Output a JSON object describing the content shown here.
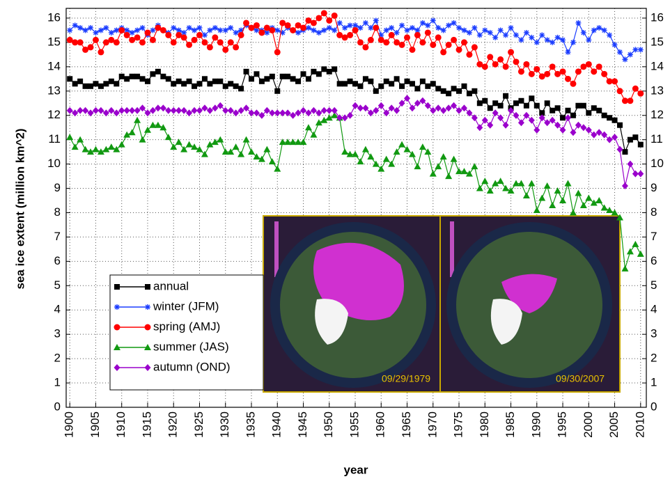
{
  "chart_data": {
    "type": "line",
    "x_label": "year",
    "y_label": "sea ice extent (million km^2)",
    "x": [
      1900,
      1901,
      1902,
      1903,
      1904,
      1905,
      1906,
      1907,
      1908,
      1909,
      1910,
      1911,
      1912,
      1913,
      1914,
      1915,
      1916,
      1917,
      1918,
      1919,
      1920,
      1921,
      1922,
      1923,
      1924,
      1925,
      1926,
      1927,
      1928,
      1929,
      1930,
      1931,
      1932,
      1933,
      1934,
      1935,
      1936,
      1937,
      1938,
      1939,
      1940,
      1941,
      1942,
      1943,
      1944,
      1945,
      1946,
      1947,
      1948,
      1949,
      1950,
      1951,
      1952,
      1953,
      1954,
      1955,
      1956,
      1957,
      1958,
      1959,
      1960,
      1961,
      1962,
      1963,
      1964,
      1965,
      1966,
      1967,
      1968,
      1969,
      1970,
      1971,
      1972,
      1973,
      1974,
      1975,
      1976,
      1977,
      1978,
      1979,
      1980,
      1981,
      1982,
      1983,
      1984,
      1985,
      1986,
      1987,
      1988,
      1989,
      1990,
      1991,
      1992,
      1993,
      1994,
      1995,
      1996,
      1997,
      1998,
      1999,
      2000,
      2001,
      2002,
      2003,
      2004,
      2005,
      2006,
      2007,
      2008,
      2009,
      2010
    ],
    "xlim": [
      1899.3,
      2011.1
    ],
    "xticks": [
      1900,
      1905,
      1910,
      1915,
      1920,
      1925,
      1930,
      1935,
      1940,
      1945,
      1950,
      1955,
      1960,
      1965,
      1970,
      1975,
      1980,
      1985,
      1990,
      1995,
      2000,
      2005,
      2010
    ],
    "ylim": [
      0,
      16.4
    ],
    "yticks": [
      0,
      1,
      2,
      3,
      4,
      5,
      6,
      7,
      8,
      9,
      10,
      11,
      12,
      13,
      14,
      15,
      16
    ],
    "grid": true,
    "legend": "lower left",
    "series": [
      {
        "name": "annual",
        "color": "#000000",
        "marker": "square",
        "values": [
          13.5,
          13.3,
          13.4,
          13.2,
          13.2,
          13.3,
          13.2,
          13.3,
          13.4,
          13.3,
          13.6,
          13.5,
          13.6,
          13.6,
          13.5,
          13.4,
          13.7,
          13.8,
          13.6,
          13.5,
          13.3,
          13.4,
          13.3,
          13.4,
          13.2,
          13.3,
          13.5,
          13.3,
          13.4,
          13.4,
          13.2,
          13.3,
          13.2,
          13.1,
          13.8,
          13.5,
          13.7,
          13.4,
          13.5,
          13.6,
          13.0,
          13.6,
          13.6,
          13.5,
          13.4,
          13.7,
          13.5,
          13.8,
          13.7,
          13.9,
          13.8,
          13.9,
          13.3,
          13.3,
          13.4,
          13.3,
          13.2,
          13.5,
          13.4,
          13.0,
          13.2,
          13.4,
          13.3,
          13.5,
          13.2,
          13.4,
          13.3,
          13.1,
          13.4,
          13.2,
          13.3,
          13.1,
          13.0,
          12.9,
          13.1,
          13.0,
          13.2,
          12.9,
          13.0,
          12.5,
          12.6,
          12.3,
          12.5,
          12.4,
          12.8,
          12.3,
          12.5,
          12.6,
          12.4,
          12.7,
          12.4,
          12.1,
          12.5,
          12.2,
          12.3,
          11.9,
          12.2,
          12.0,
          12.4,
          12.4,
          12.1,
          12.3,
          12.2,
          12.0,
          11.9,
          11.8,
          11.6,
          10.5,
          11.0,
          11.1,
          10.8
        ]
      },
      {
        "name": "winter (JFM)",
        "color": "#1a3cff",
        "marker": "star",
        "values": [
          15.5,
          15.7,
          15.6,
          15.5,
          15.6,
          15.4,
          15.5,
          15.6,
          15.4,
          15.5,
          15.6,
          15.5,
          15.4,
          15.5,
          15.6,
          15.3,
          15.5,
          15.7,
          15.5,
          15.4,
          15.6,
          15.5,
          15.4,
          15.6,
          15.5,
          15.6,
          15.3,
          15.5,
          15.6,
          15.5,
          15.5,
          15.6,
          15.4,
          15.5,
          15.7,
          15.6,
          15.5,
          15.5,
          15.4,
          15.6,
          15.5,
          15.4,
          15.6,
          15.5,
          15.4,
          15.5,
          15.6,
          15.5,
          15.4,
          15.5,
          15.6,
          15.5,
          15.8,
          15.6,
          15.7,
          15.7,
          15.6,
          15.8,
          15.6,
          15.9,
          15.3,
          15.5,
          15.6,
          15.4,
          15.7,
          15.5,
          15.6,
          15.5,
          15.8,
          15.7,
          15.9,
          15.6,
          15.5,
          15.7,
          15.8,
          15.6,
          15.5,
          15.4,
          15.6,
          15.3,
          15.5,
          15.4,
          15.2,
          15.5,
          15.3,
          15.6,
          15.3,
          15.1,
          15.4,
          15.2,
          15.0,
          15.3,
          15.1,
          15.0,
          15.2,
          15.1,
          14.6,
          15.0,
          15.8,
          15.4,
          15.1,
          15.5,
          15.6,
          15.5,
          15.3,
          14.9,
          14.6,
          14.3,
          14.5,
          14.7,
          14.7
        ]
      },
      {
        "name": "spring (AMJ)",
        "color": "#ff0000",
        "marker": "circle",
        "values": [
          15.1,
          15.0,
          15.0,
          14.7,
          14.8,
          15.1,
          14.6,
          15.0,
          15.1,
          15.0,
          15.5,
          15.3,
          15.1,
          15.2,
          15.0,
          15.4,
          15.1,
          15.6,
          15.5,
          15.3,
          15.0,
          15.3,
          15.2,
          14.9,
          15.1,
          15.3,
          15.0,
          14.8,
          15.2,
          15.0,
          14.7,
          15.0,
          14.8,
          15.3,
          15.8,
          15.6,
          15.7,
          15.4,
          15.6,
          15.5,
          14.6,
          15.8,
          15.7,
          15.5,
          15.7,
          15.6,
          15.9,
          15.8,
          16.0,
          16.2,
          15.9,
          16.1,
          15.3,
          15.2,
          15.3,
          15.5,
          15.0,
          14.8,
          15.1,
          15.6,
          15.1,
          15.0,
          15.3,
          15.0,
          14.9,
          15.2,
          14.7,
          15.3,
          15.0,
          15.4,
          14.9,
          15.2,
          14.6,
          14.9,
          15.1,
          14.7,
          15.0,
          14.5,
          14.8,
          14.1,
          14.0,
          14.4,
          14.1,
          14.3,
          14.0,
          14.6,
          14.2,
          13.8,
          14.1,
          13.7,
          13.9,
          13.6,
          13.7,
          14.0,
          13.7,
          13.8,
          13.5,
          13.3,
          13.8,
          14.0,
          14.1,
          13.8,
          14.0,
          13.7,
          13.4,
          13.4,
          13.0,
          12.6,
          12.6,
          13.1,
          12.9
        ]
      },
      {
        "name": "summer (JAS)",
        "color": "#119911",
        "marker": "triangle",
        "values": [
          11.1,
          10.7,
          11.0,
          10.6,
          10.5,
          10.6,
          10.5,
          10.6,
          10.7,
          10.6,
          10.8,
          11.2,
          11.3,
          11.8,
          11.0,
          11.4,
          11.6,
          11.6,
          11.5,
          11.1,
          10.7,
          10.9,
          10.6,
          10.8,
          10.7,
          10.6,
          10.4,
          10.8,
          10.9,
          11.0,
          10.5,
          10.5,
          10.7,
          10.4,
          11.0,
          10.5,
          10.3,
          10.2,
          10.6,
          10.1,
          9.8,
          10.9,
          10.9,
          10.9,
          10.9,
          10.9,
          11.5,
          11.2,
          11.7,
          11.8,
          11.9,
          12.0,
          11.9,
          10.5,
          10.4,
          10.4,
          10.1,
          10.6,
          10.3,
          10.0,
          9.8,
          10.2,
          10.0,
          10.5,
          10.8,
          10.6,
          10.4,
          9.9,
          10.7,
          10.5,
          9.6,
          9.9,
          10.3,
          9.5,
          10.2,
          9.7,
          9.7,
          9.6,
          9.9,
          9.0,
          9.3,
          8.9,
          9.2,
          9.3,
          9.0,
          8.9,
          9.2,
          9.2,
          8.7,
          9.2,
          8.1,
          8.6,
          9.1,
          8.3,
          8.9,
          8.5,
          9.2,
          8.0,
          8.8,
          8.3,
          8.6,
          8.4,
          8.5,
          8.2,
          8.1,
          8.0,
          7.8,
          5.7,
          6.4,
          6.7,
          6.3
        ]
      },
      {
        "name": "autumn (OND)",
        "color": "#9a00cc",
        "marker": "diamond",
        "values": [
          12.2,
          12.1,
          12.2,
          12.2,
          12.1,
          12.2,
          12.2,
          12.1,
          12.2,
          12.1,
          12.2,
          12.2,
          12.2,
          12.2,
          12.3,
          12.1,
          12.2,
          12.3,
          12.3,
          12.2,
          12.2,
          12.2,
          12.2,
          12.1,
          12.2,
          12.2,
          12.3,
          12.2,
          12.3,
          12.4,
          12.2,
          12.2,
          12.1,
          12.2,
          12.3,
          12.1,
          12.1,
          12.0,
          12.2,
          12.1,
          12.1,
          12.1,
          12.1,
          12.0,
          12.1,
          12.2,
          12.1,
          12.2,
          12.1,
          12.2,
          12.2,
          12.2,
          11.9,
          11.9,
          12.0,
          12.4,
          12.3,
          12.3,
          12.1,
          12.2,
          12.4,
          12.1,
          12.3,
          12.2,
          12.5,
          12.7,
          12.3,
          12.5,
          12.6,
          12.4,
          12.2,
          12.3,
          12.2,
          12.3,
          12.4,
          12.2,
          12.3,
          12.1,
          11.9,
          11.5,
          11.8,
          11.6,
          12.1,
          11.9,
          11.6,
          12.2,
          12.0,
          11.7,
          12.0,
          11.8,
          11.4,
          11.9,
          11.7,
          11.8,
          11.6,
          11.4,
          11.9,
          11.3,
          11.6,
          11.5,
          11.4,
          11.2,
          11.3,
          11.2,
          11.0,
          11.1,
          10.6,
          9.1,
          10.0,
          9.6,
          9.6
        ]
      }
    ],
    "annotations": [
      "09/29/1979",
      "09/30/2007"
    ]
  }
}
